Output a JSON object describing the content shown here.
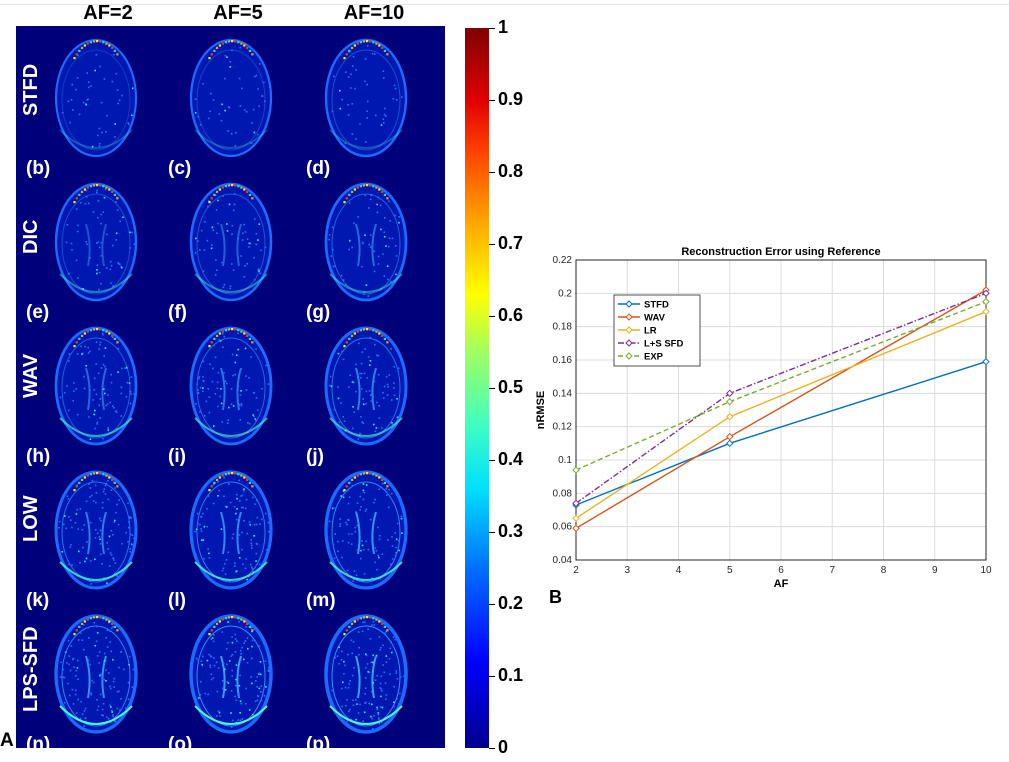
{
  "panel_a": {
    "label": "A",
    "column_headers": [
      "AF=2",
      "AF=5",
      "AF=10"
    ],
    "row_labels": [
      "STFD",
      "DIC",
      "WAV",
      "LOW",
      "LPS-SFD"
    ],
    "sub_labels": [
      [
        "(b)",
        "(c)",
        "(d)"
      ],
      [
        "(e)",
        "(f)",
        "(g)"
      ],
      [
        "(h)",
        "(i)",
        "(j)"
      ],
      [
        "(k)",
        "(l)",
        "(m)"
      ],
      [
        "(n)",
        "(o)",
        "(p)"
      ]
    ],
    "colorbar": {
      "ticks": [
        "1",
        "0.9",
        "0.8",
        "0.7",
        "0.6",
        "0.5",
        "0.4",
        "0.3",
        "0.2",
        "0.1",
        "0"
      ],
      "range": [
        0,
        1
      ]
    }
  },
  "panel_b": {
    "label": "B"
  },
  "chart_data": {
    "type": "line",
    "title": "Reconstruction Error using Reference",
    "xlabel": "AF",
    "ylabel": "nRMSE",
    "x": [
      2,
      5,
      10
    ],
    "xlim": [
      2,
      10
    ],
    "ylim": [
      0.04,
      0.22
    ],
    "xticks": [
      "2",
      "3",
      "4",
      "5",
      "6",
      "7",
      "8",
      "9",
      "10"
    ],
    "yticks": [
      "0.04",
      "0.06",
      "0.08",
      "0.1",
      "0.12",
      "0.14",
      "0.16",
      "0.18",
      "0.2",
      "0.22"
    ],
    "grid": true,
    "legend_position": "top-left",
    "series": [
      {
        "name": "STFD",
        "values": [
          0.073,
          0.11,
          0.159
        ],
        "color": "#0072bd",
        "dash": "solid"
      },
      {
        "name": "WAV",
        "values": [
          0.059,
          0.114,
          0.202
        ],
        "color": "#d95319",
        "dash": "solid"
      },
      {
        "name": "LR",
        "values": [
          0.065,
          0.126,
          0.189
        ],
        "color": "#edb120",
        "dash": "solid"
      },
      {
        "name": "L+S SFD",
        "values": [
          0.074,
          0.14,
          0.2
        ],
        "color": "#7e2f8e",
        "dash": "dashdot"
      },
      {
        "name": "EXP",
        "values": [
          0.094,
          0.135,
          0.195
        ],
        "color": "#77ac30",
        "dash": "dashed"
      }
    ]
  }
}
